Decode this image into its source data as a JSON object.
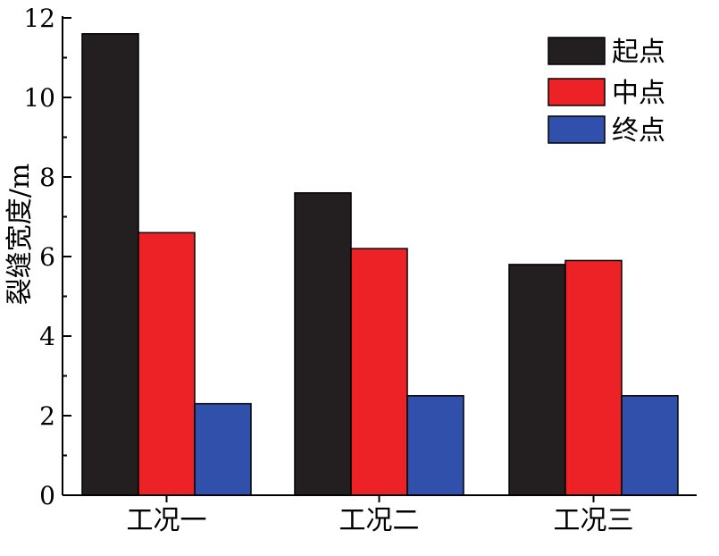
{
  "chart_data": {
    "type": "bar",
    "title": "",
    "xlabel": "",
    "ylabel": "裂缝宽度/m",
    "ylim": [
      0,
      12
    ],
    "yticks": [
      0,
      2,
      4,
      6,
      8,
      10,
      12
    ],
    "ytick_labels": [
      "0",
      "2",
      "4",
      "6",
      "8",
      "10",
      "12"
    ],
    "grid": false,
    "legend_position": "top-right",
    "categories": [
      "工况一",
      "工况二",
      "工况三"
    ],
    "series": [
      {
        "name": "起点",
        "color": "#231f20",
        "values": [
          11.6,
          7.6,
          5.8
        ]
      },
      {
        "name": "中点",
        "color": "#ec2227",
        "values": [
          6.6,
          6.2,
          5.9
        ]
      },
      {
        "name": "终点",
        "color": "#3050ac",
        "values": [
          2.3,
          2.5,
          2.5
        ]
      }
    ]
  }
}
